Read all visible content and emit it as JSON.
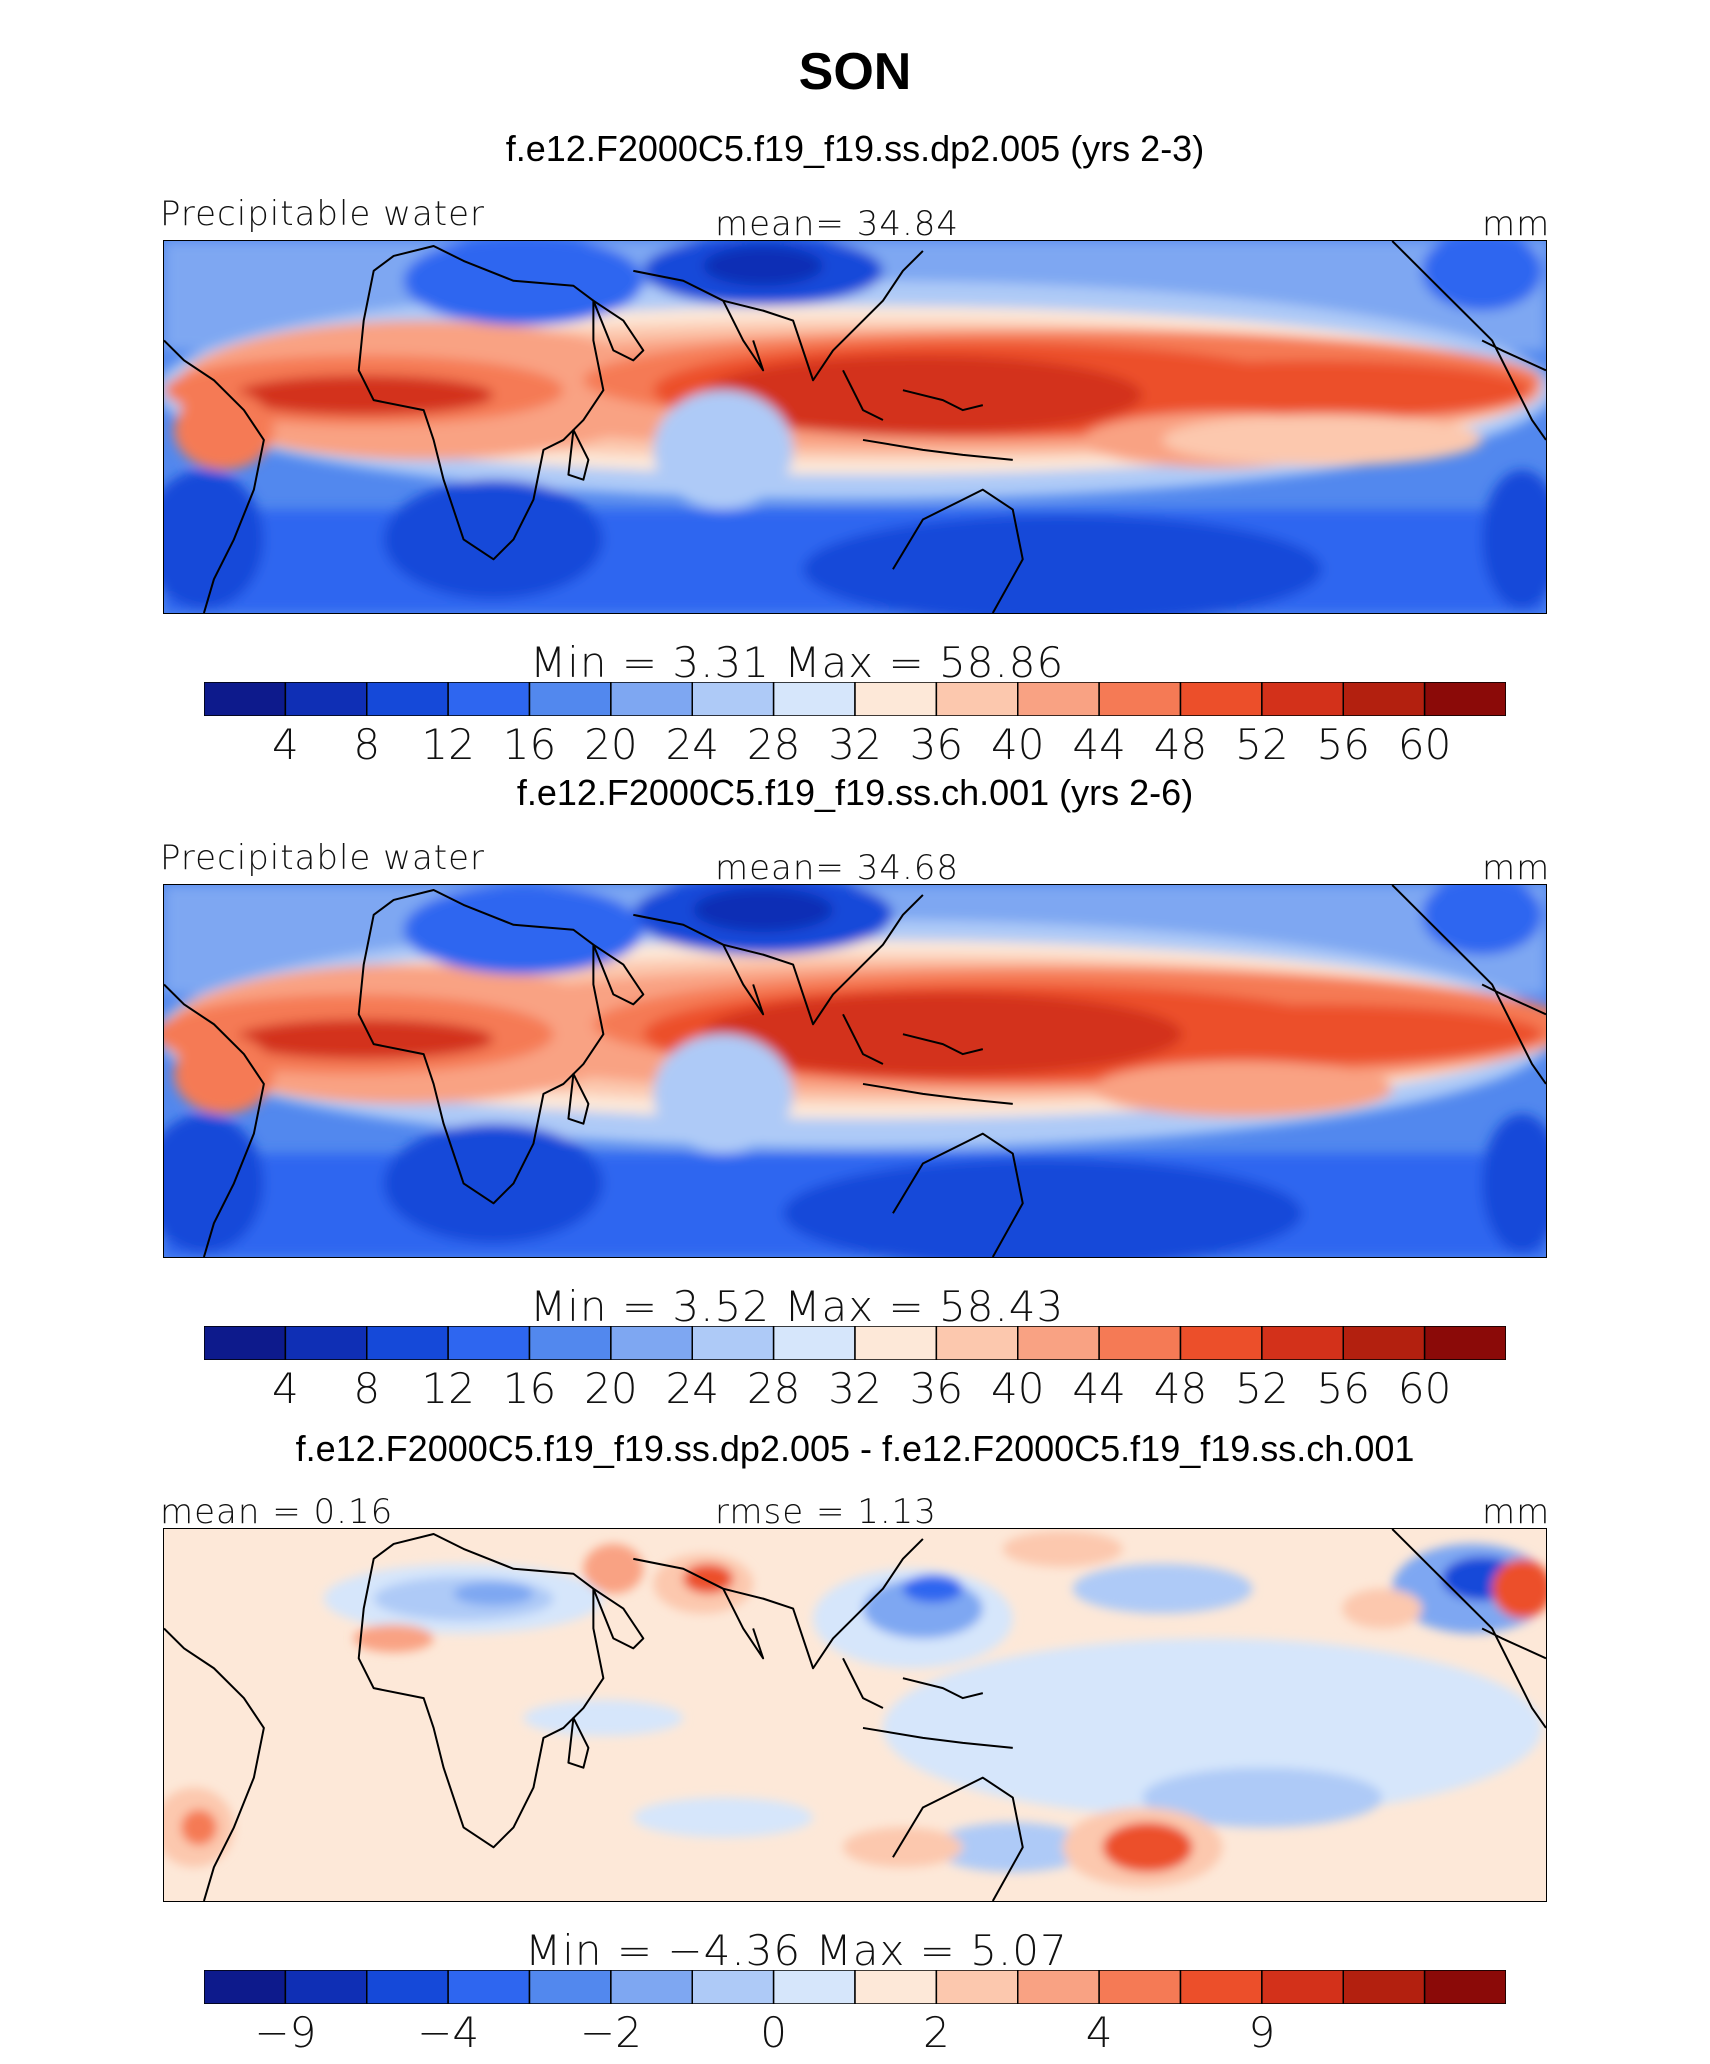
{
  "title": "SON",
  "panels": [
    {
      "id": "panel1",
      "subtitle": "f.e12.F2000C5.f19_f19.ss.dp2.005 (yrs 2-3)",
      "left_label": "Precipitable water",
      "center_label": "mean=   34.84",
      "right_label": "mm",
      "minmax": "Min  =     3.31  Max  =    58.86",
      "ticks": [
        "4",
        "8",
        "12",
        "16",
        "20",
        "24",
        "28",
        "32",
        "36",
        "40",
        "44",
        "48",
        "52",
        "56",
        "60"
      ]
    },
    {
      "id": "panel2",
      "subtitle": "f.e12.F2000C5.f19_f19.ss.ch.001 (yrs 2-6)",
      "left_label": "Precipitable water",
      "center_label": "mean=   34.68",
      "right_label": "mm",
      "minmax": "Min  =     3.52  Max  =    58.43",
      "ticks": [
        "4",
        "8",
        "12",
        "16",
        "20",
        "24",
        "28",
        "32",
        "36",
        "40",
        "44",
        "48",
        "52",
        "56",
        "60"
      ]
    },
    {
      "id": "panel3",
      "subtitle": "f.e12.F2000C5.f19_f19.ss.dp2.005 - f.e12.F2000C5.f19_f19.ss.ch.001",
      "left_label": "mean  =     0.16",
      "center_label": "rmse  =     1.13",
      "right_label": "mm",
      "minmax": "Min  =    −4.36  Max  =     5.07",
      "ticks": [
        "−9",
        "",
        "−4",
        "",
        "−2",
        "",
        "0",
        "",
        "2",
        "",
        "4",
        "",
        "9",
        ""
      ]
    }
  ],
  "chart_data": [
    {
      "type": "heatmap",
      "title": "f.e12.F2000C5.f19_f19.ss.dp2.005 (yrs 2-3)",
      "variable": "Precipitable water",
      "units": "mm",
      "mean": 34.84,
      "min": 3.31,
      "max": 58.86,
      "levels": [
        4,
        8,
        12,
        16,
        20,
        24,
        28,
        32,
        36,
        40,
        44,
        48,
        52,
        56,
        60
      ]
    },
    {
      "type": "heatmap",
      "title": "f.e12.F2000C5.f19_f19.ss.ch.001 (yrs 2-6)",
      "variable": "Precipitable water",
      "units": "mm",
      "mean": 34.68,
      "min": 3.52,
      "max": 58.43,
      "levels": [
        4,
        8,
        12,
        16,
        20,
        24,
        28,
        32,
        36,
        40,
        44,
        48,
        52,
        56,
        60
      ]
    },
    {
      "type": "heatmap",
      "title": "f.e12.F2000C5.f19_f19.ss.dp2.005 - f.e12.F2000C5.f19_f19.ss.ch.001",
      "units": "mm",
      "mean": 0.16,
      "rmse": 1.13,
      "min": -4.36,
      "max": 5.07,
      "labeled_levels": [
        -9,
        -4,
        -2,
        0,
        2,
        4,
        9
      ]
    }
  ],
  "colors": [
    "#0d1a8c",
    "#0f2fb5",
    "#1549d9",
    "#2e66f0",
    "#5288ee",
    "#7ea7f2",
    "#aecaf7",
    "#d6e6fb",
    "#fde8d8",
    "#fcc8ae",
    "#f9a283",
    "#f57a55",
    "#ec4f2a",
    "#d3311a",
    "#b3200f",
    "#8b0a08"
  ]
}
